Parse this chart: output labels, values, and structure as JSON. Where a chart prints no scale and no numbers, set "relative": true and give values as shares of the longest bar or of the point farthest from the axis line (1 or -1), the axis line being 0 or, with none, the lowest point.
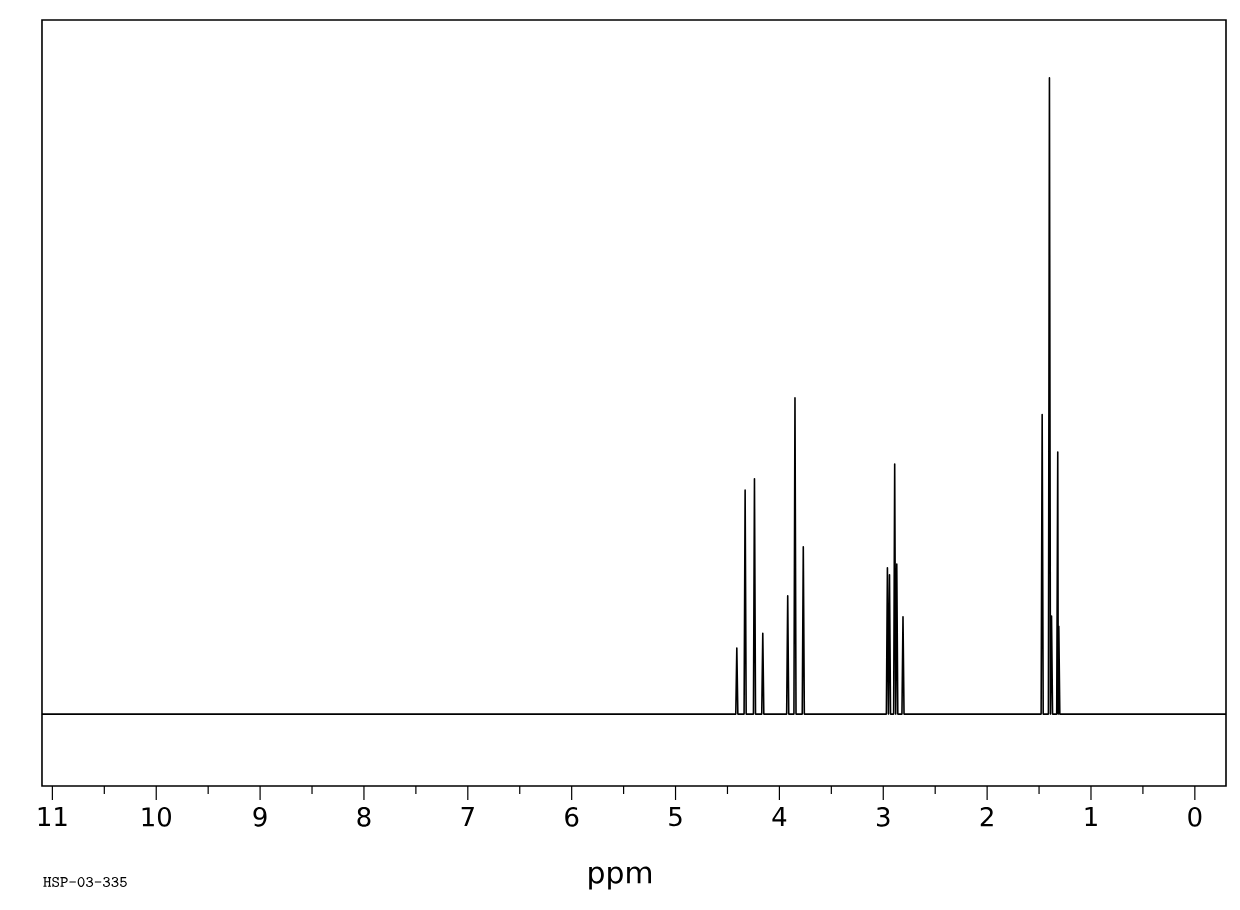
{
  "chart_data": {
    "type": "line",
    "relative": true,
    "xlabel": "ppm",
    "annotations": [
      "HSP-03-335"
    ],
    "xlim": [
      11.1,
      -0.3
    ],
    "xticks": [
      11,
      10,
      9,
      8,
      7,
      6,
      5,
      4,
      3,
      2,
      1,
      0
    ],
    "grid": false,
    "marker": "none",
    "line_style": "solid",
    "series": [
      {
        "color": "#000000",
        "x": [
          11.1,
          4.42,
          4.41,
          4.4,
          4.34,
          4.33,
          4.32,
          4.25,
          4.24,
          4.23,
          4.17,
          4.16,
          4.15,
          3.93,
          3.92,
          3.91,
          3.86,
          3.85,
          3.84,
          3.78,
          3.77,
          3.76,
          2.97,
          2.96,
          2.95,
          2.94,
          2.93,
          2.9,
          2.89,
          2.88,
          2.87,
          2.86,
          2.82,
          2.81,
          2.8,
          1.48,
          1.47,
          1.46,
          1.41,
          1.4,
          1.39,
          1.38,
          1.37,
          1.33,
          1.32,
          1.315,
          1.31,
          1.3,
          -0.3
        ],
        "values": [
          0,
          0,
          0.104,
          0,
          0,
          0.352,
          0,
          0,
          0.37,
          0,
          0,
          0.127,
          0,
          0,
          0.186,
          0,
          0,
          0.497,
          0,
          0,
          0.263,
          0,
          0,
          0.23,
          0,
          0.219,
          0,
          0,
          0.393,
          0,
          0.236,
          0,
          0,
          0.153,
          0,
          0,
          0.471,
          0,
          0,
          1,
          0,
          0.154,
          0,
          0,
          0.412,
          0,
          0.138,
          0,
          0
        ]
      }
    ]
  }
}
